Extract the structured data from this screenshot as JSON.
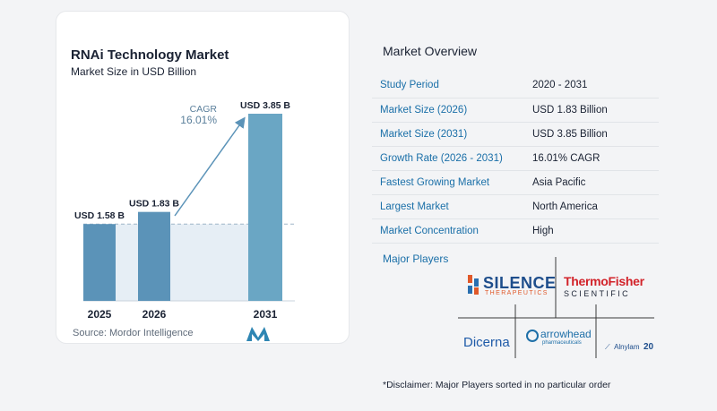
{
  "chart_data": {
    "type": "bar",
    "title": "RNAi Technology Market",
    "subtitle": "Market Size in USD Billion",
    "categories": [
      "2025",
      "2026",
      "2031"
    ],
    "values": [
      1.58,
      1.83,
      3.85
    ],
    "data_labels": [
      "USD 1.58 B",
      "USD 1.83 B",
      "USD 3.85 B"
    ],
    "cagr_label": "CAGR",
    "cagr_value": "16.01%",
    "ylim": [
      0,
      3.85
    ],
    "colors": [
      "#5b93b8",
      "#5b93b8",
      "#6aa6c4"
    ]
  },
  "source": "Source:  Mordor Intelligence",
  "overview": {
    "title": "Market Overview",
    "rows": [
      {
        "key": "Study Period",
        "value": "2020 - 2031"
      },
      {
        "key": "Market Size (2026)",
        "value": "USD 1.83 Billion"
      },
      {
        "key": "Market Size (2031)",
        "value": "USD 3.85 Billion"
      },
      {
        "key": "Growth Rate (2026 - 2031)",
        "value": "16.01% CAGR"
      },
      {
        "key": "Fastest Growing Market",
        "value": "Asia Pacific"
      },
      {
        "key": "Largest Market",
        "value": "North America"
      },
      {
        "key": "Market Concentration",
        "value": "High"
      }
    ]
  },
  "players": {
    "title": "Major Players",
    "silence_main": "SILENCE",
    "silence_sub": "THERAPEUTICS",
    "thermo_main": "ThermoFisher",
    "thermo_sub": "SCIENTIFIC",
    "dicerna": "Dicerna",
    "arrowhead_main": "arrowhead",
    "arrowhead_sub": "pharmaceuticals",
    "alnylam": "Alnylam",
    "alnylam_num": "20"
  },
  "disclaimer": "*Disclaimer: Major Players sorted in no particular order"
}
